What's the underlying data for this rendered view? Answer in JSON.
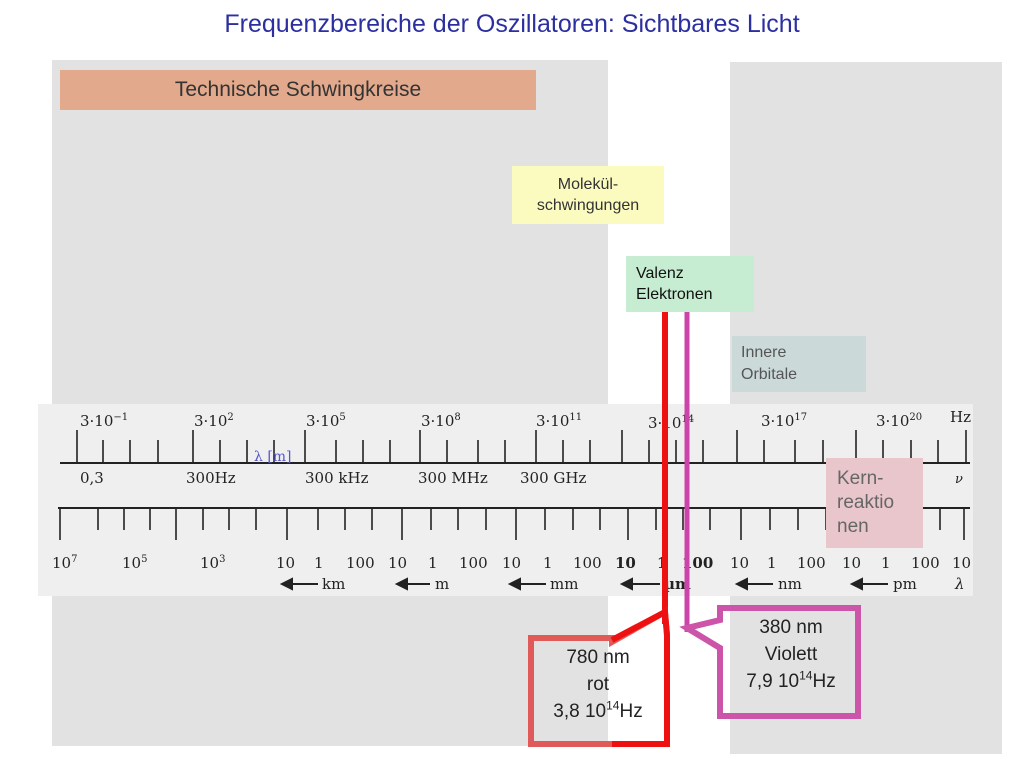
{
  "title": "Frequenzbereiche der Oszillatoren: Sichtbares Licht",
  "boxes": {
    "technische": "Technische Schwingkreise",
    "molekuel": [
      "Molekül-",
      "schwingungen"
    ],
    "valenz": [
      "Valenz",
      "Elektronen"
    ],
    "innere": [
      "Innere",
      "Orbitale"
    ],
    "kern": [
      "Kern-",
      "reaktio",
      "nen"
    ]
  },
  "frequency_scale": {
    "exponent_labels": [
      {
        "base": "3·10",
        "exp": "−1"
      },
      {
        "base": "3·10",
        "exp": "2"
      },
      {
        "base": "3·10",
        "exp": "5"
      },
      {
        "base": "3·10",
        "exp": "8"
      },
      {
        "base": "3·10",
        "exp": "11"
      },
      {
        "base": "3·10",
        "exp": "14"
      },
      {
        "base": "3·10",
        "exp": "17"
      },
      {
        "base": "3·10",
        "exp": "20"
      }
    ],
    "unit": "Hz",
    "named_labels": [
      "0,3",
      "300Hz",
      "300 kHz",
      "300 MHz",
      "300 GHz"
    ],
    "symbol": "ν",
    "lambda_marker": "λ [m]"
  },
  "wavelength_scale": {
    "exp_labels": [
      {
        "base": "10",
        "exp": "7"
      },
      {
        "base": "10",
        "exp": "5"
      },
      {
        "base": "10",
        "exp": "3"
      }
    ],
    "number_labels": [
      "10",
      "1",
      "100",
      "10",
      "1",
      "100",
      "10",
      "1",
      "100",
      "10",
      "1",
      "100",
      "10",
      "1",
      "100",
      "10",
      "1",
      "100",
      "10"
    ],
    "units": [
      "km",
      "m",
      "mm",
      "µm",
      "nm",
      "pm"
    ],
    "symbol": "λ"
  },
  "callouts": {
    "red": {
      "line1": "780 nm",
      "line2": "rot",
      "line3_base": "3,8 10",
      "line3_exp": "14",
      "line3_unit": "Hz",
      "color": "#ee1111"
    },
    "violet": {
      "line1": "380 nm",
      "line2": "Violett",
      "line3_base": "7,9 10",
      "line3_exp": "14",
      "line3_unit": "Hz",
      "color": "#cc44aa"
    }
  },
  "colors": {
    "title": "#2b2fa0",
    "panel": "#e2e2e2",
    "technische": "#e2a98c",
    "molekuel": "#fbfbc0",
    "valenz": "#c6ecd2",
    "innere": "#cbd9d9",
    "kern": "#e8c6cc"
  }
}
